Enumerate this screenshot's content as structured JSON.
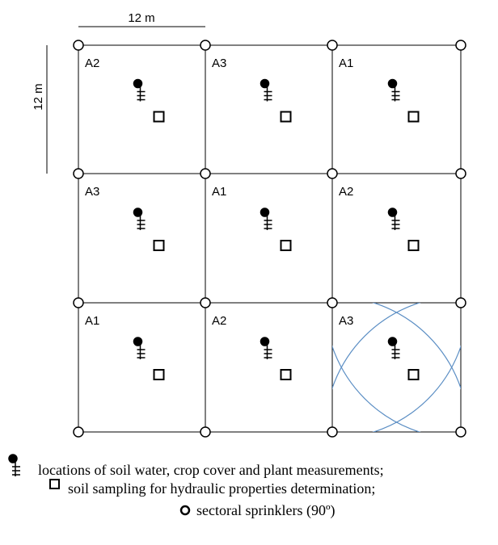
{
  "scale": {
    "horizontal": "12 m",
    "vertical": "12 m"
  },
  "cells": [
    [
      "A2",
      "A3",
      "A1"
    ],
    [
      "A3",
      "A1",
      "A2"
    ],
    [
      "A1",
      "A2",
      "A3"
    ]
  ],
  "legend": {
    "probe": "locations of soil water, crop cover and plant measurements;",
    "sampling": "soil sampling for hydraulic properties determination;",
    "sprinkler": "sectoral sprinklers (90º)"
  }
}
